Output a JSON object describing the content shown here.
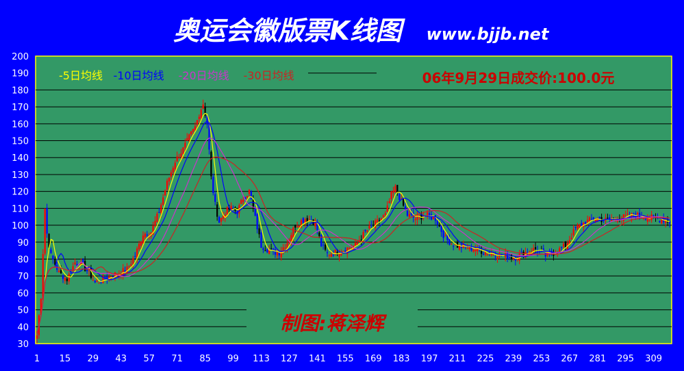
{
  "chart_data": {
    "type": "candlestick",
    "title": "奥运会徽版票K线图",
    "site": "www.bjjb.net",
    "note": "06年9月29日成交价:100.0元",
    "credit": "制图:蒋泽辉",
    "x_start": 1,
    "x_end": 317,
    "xticks": [
      1,
      15,
      29,
      43,
      57,
      71,
      85,
      99,
      113,
      127,
      141,
      155,
      169,
      183,
      197,
      211,
      225,
      239,
      253,
      267,
      281,
      295,
      309
    ],
    "ylim": [
      30,
      200
    ],
    "yticks": [
      30,
      40,
      50,
      60,
      70,
      80,
      90,
      100,
      110,
      120,
      130,
      140,
      150,
      160,
      170,
      180,
      190,
      200
    ],
    "grid": true,
    "legend": {
      "position": "top-left",
      "entries": [
        {
          "label": "-5日均线",
          "color": "#FFFF00"
        },
        {
          "label": "-10日均线",
          "color": "#0000FF"
        },
        {
          "label": "-20日均线",
          "color": "#CC33CC"
        },
        {
          "label": "-30日均线",
          "color": "#CC2222"
        }
      ]
    },
    "price_anchors": {
      "x": [
        1,
        3,
        5,
        6,
        8,
        12,
        16,
        20,
        24,
        28,
        30,
        34,
        38,
        42,
        46,
        50,
        54,
        58,
        62,
        66,
        70,
        74,
        77,
        80,
        82,
        84,
        86,
        88,
        90,
        92,
        95,
        98,
        101,
        104,
        107,
        110,
        113,
        116,
        119,
        122,
        126,
        130,
        135,
        140,
        143,
        146,
        150,
        155,
        160,
        165,
        170,
        175,
        178,
        180,
        183,
        186,
        190,
        195,
        200,
        205,
        210,
        215,
        220,
        225,
        230,
        235,
        240,
        245,
        250,
        255,
        260,
        265,
        270,
        275,
        280,
        285,
        290,
        295,
        300,
        305,
        310,
        315,
        317
      ],
      "close": [
        35,
        58,
        110,
        95,
        82,
        72,
        68,
        78,
        76,
        70,
        66,
        68,
        70,
        72,
        74,
        82,
        95,
        96,
        108,
        125,
        138,
        145,
        152,
        158,
        166,
        172,
        160,
        128,
        112,
        102,
        108,
        110,
        108,
        116,
        120,
        104,
        88,
        86,
        84,
        84,
        90,
        100,
        104,
        102,
        88,
        83,
        84,
        86,
        88,
        96,
        101,
        106,
        118,
        122,
        114,
        106,
        104,
        106,
        104,
        92,
        88,
        87,
        86,
        84,
        83,
        82,
        81,
        84,
        86,
        82,
        84,
        88,
        98,
        102,
        104,
        103,
        104,
        105,
        106,
        105,
        104,
        103,
        102
      ]
    }
  }
}
